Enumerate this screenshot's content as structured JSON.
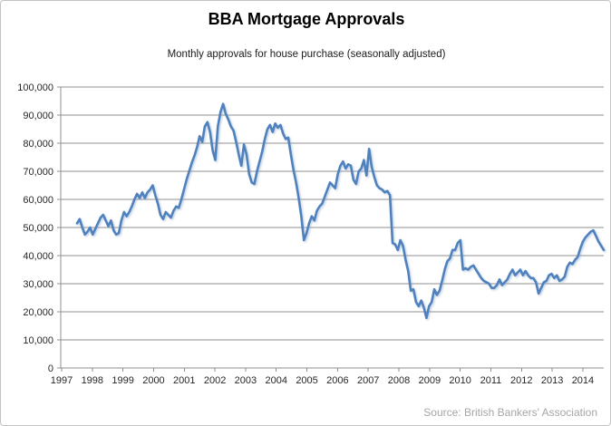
{
  "header": {
    "title": "BBA Mortgage Approvals",
    "subtitle": "Monthly approvals for house purchase (seasonally adjusted)"
  },
  "footer": {
    "source": "Source: British Bankers' Association"
  },
  "colors": {
    "line": "#4F81BD",
    "line_shadow": "#8aa9cc",
    "grid": "#8f8f8f",
    "axis": "#8f8f8f",
    "tick_text": "#262626",
    "title_text": "#000000",
    "source_text": "#a6a6a6",
    "background": "#ffffff",
    "frame_border": "#c3c3c3"
  },
  "chart_data": {
    "type": "line",
    "title": "BBA Mortgage Approvals",
    "subtitle": "Monthly approvals for house purchase (seasonally adjusted)",
    "xlabel": "",
    "ylabel": "",
    "legend": "none",
    "grid": "horizontal",
    "ylim": [
      0,
      100000
    ],
    "yticks": [
      0,
      10000,
      20000,
      30000,
      40000,
      50000,
      60000,
      70000,
      80000,
      90000,
      100000
    ],
    "ytick_labels": [
      "0",
      "10,000",
      "20,000",
      "30,000",
      "40,000",
      "50,000",
      "60,000",
      "70,000",
      "80,000",
      "90,000",
      "100,000"
    ],
    "xticks": [
      "1997",
      "1998",
      "1999",
      "2000",
      "2001",
      "2002",
      "2003",
      "2004",
      "2005",
      "2006",
      "2007",
      "2008",
      "2009",
      "2010",
      "2011",
      "2012",
      "2013",
      "2014"
    ],
    "series": [
      {
        "name": "Monthly mortgage approvals for house purchase",
        "x_start": "1997-09",
        "x_freq": "monthly",
        "values": [
          51500,
          53000,
          50000,
          47500,
          48500,
          50000,
          47500,
          49500,
          51500,
          53500,
          54500,
          52500,
          50500,
          52500,
          49000,
          47500,
          48000,
          52500,
          55500,
          54000,
          55500,
          57500,
          60000,
          62000,
          60500,
          62500,
          60500,
          62500,
          63500,
          65000,
          61500,
          58500,
          54500,
          53000,
          55500,
          54500,
          53500,
          56000,
          57500,
          57000,
          60000,
          63500,
          67000,
          70000,
          73000,
          75500,
          78500,
          82500,
          80500,
          86000,
          87500,
          84000,
          77500,
          74000,
          86000,
          91000,
          94000,
          90500,
          88500,
          86000,
          84500,
          80500,
          76000,
          72000,
          79500,
          76000,
          69000,
          66000,
          65500,
          70000,
          73500,
          77000,
          81500,
          85000,
          86500,
          84000,
          87000,
          85500,
          86500,
          83500,
          81500,
          82000,
          76000,
          70500,
          66000,
          60500,
          54000,
          45500,
          48000,
          51500,
          54000,
          52500,
          56000,
          57500,
          58500,
          61000,
          63500,
          66000,
          65000,
          64000,
          69000,
          72000,
          73500,
          71000,
          72500,
          72000,
          67000,
          65500,
          70000,
          71000,
          74000,
          68500,
          78000,
          71500,
          68000,
          65000,
          64000,
          63500,
          62500,
          63000,
          61500,
          44500,
          44000,
          42000,
          45500,
          43500,
          38500,
          34500,
          27500,
          28000,
          23500,
          22000,
          24000,
          21500,
          17800,
          22000,
          23500,
          28000,
          26000,
          27500,
          31000,
          35000,
          38000,
          39000,
          42000,
          42000,
          44500,
          45500,
          35000,
          35500,
          35000,
          36000,
          36500,
          35000,
          33500,
          32000,
          31000,
          30500,
          30000,
          28500,
          28500,
          29500,
          31500,
          29500,
          30500,
          31500,
          33500,
          35000,
          33000,
          34000,
          35000,
          33000,
          34500,
          33000,
          32000,
          32000,
          30500,
          26500,
          28500,
          30500,
          31000,
          33000,
          33500,
          32000,
          33000,
          31000,
          31500,
          32500,
          36000,
          37500,
          37000,
          38500,
          39500,
          42500,
          45000,
          46500,
          47500,
          48500,
          49000,
          47000,
          45000,
          43500,
          42000
        ]
      }
    ]
  }
}
